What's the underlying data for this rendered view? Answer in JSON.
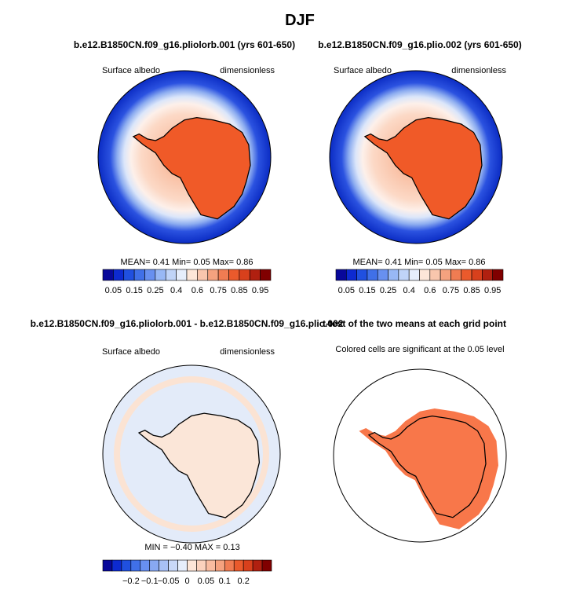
{
  "title": "DJF",
  "panels": [
    {
      "title": "b.e12.B1850CN.f09_g16.pliolorb.001 (yrs 601-650)",
      "left_label": "Surface albedo",
      "right_label": "dimensionless",
      "stats": "MEAN=   0.41   Min=   0.05   Max=   0.86",
      "colorbar_labels": [
        "0.05",
        "0.15",
        "0.25",
        "0.4",
        "0.6",
        "0.75",
        "0.85",
        "0.95"
      ]
    },
    {
      "title": "b.e12.B1850CN.f09_g16.plio.002 (yrs 601-650)",
      "left_label": "Surface albedo",
      "right_label": "dimensionless",
      "stats": "MEAN=   0.41   Min=   0.05   Max=   0.86",
      "colorbar_labels": [
        "0.05",
        "0.15",
        "0.25",
        "0.4",
        "0.6",
        "0.75",
        "0.85",
        "0.95"
      ]
    },
    {
      "title": "b.e12.B1850CN.f09_g16.pliolorb.001 - b.e12.B1850CN.f09_g16.plio.002",
      "left_label": "Surface albedo",
      "right_label": "dimensionless",
      "stats": "MIN =   −0.40   MAX =   0.13",
      "colorbar_labels": [
        "−0.2",
        "−0.1",
        "−0.05",
        "0",
        "0.05",
        "0.1",
        "0.2"
      ]
    },
    {
      "title": "t-test of the two means at each grid point",
      "subtitle": "Colored cells are significant at the 0.05 level"
    }
  ]
}
